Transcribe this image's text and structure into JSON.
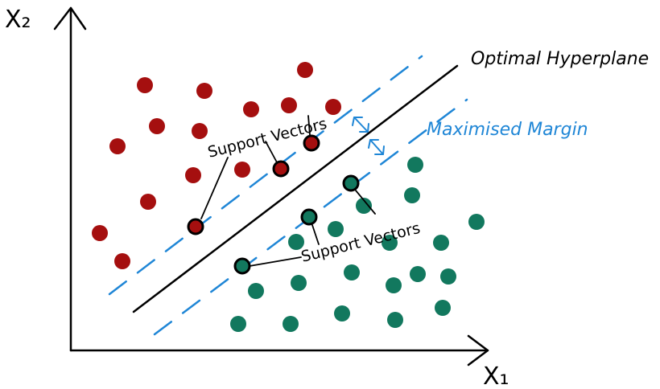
{
  "labels": {
    "x_axis": "X₁",
    "y_axis": "X₂",
    "hyperplane": "Optimal Hyperplane",
    "margin": "Maximised Margin",
    "support_vectors_upper": "Support Vectors",
    "support_vectors_lower": "Support Vectors"
  },
  "colors": {
    "class_red": "#a50f0f",
    "class_green": "#12785e",
    "margin_blue": "#1f86d6",
    "ink": "#000000"
  }
}
